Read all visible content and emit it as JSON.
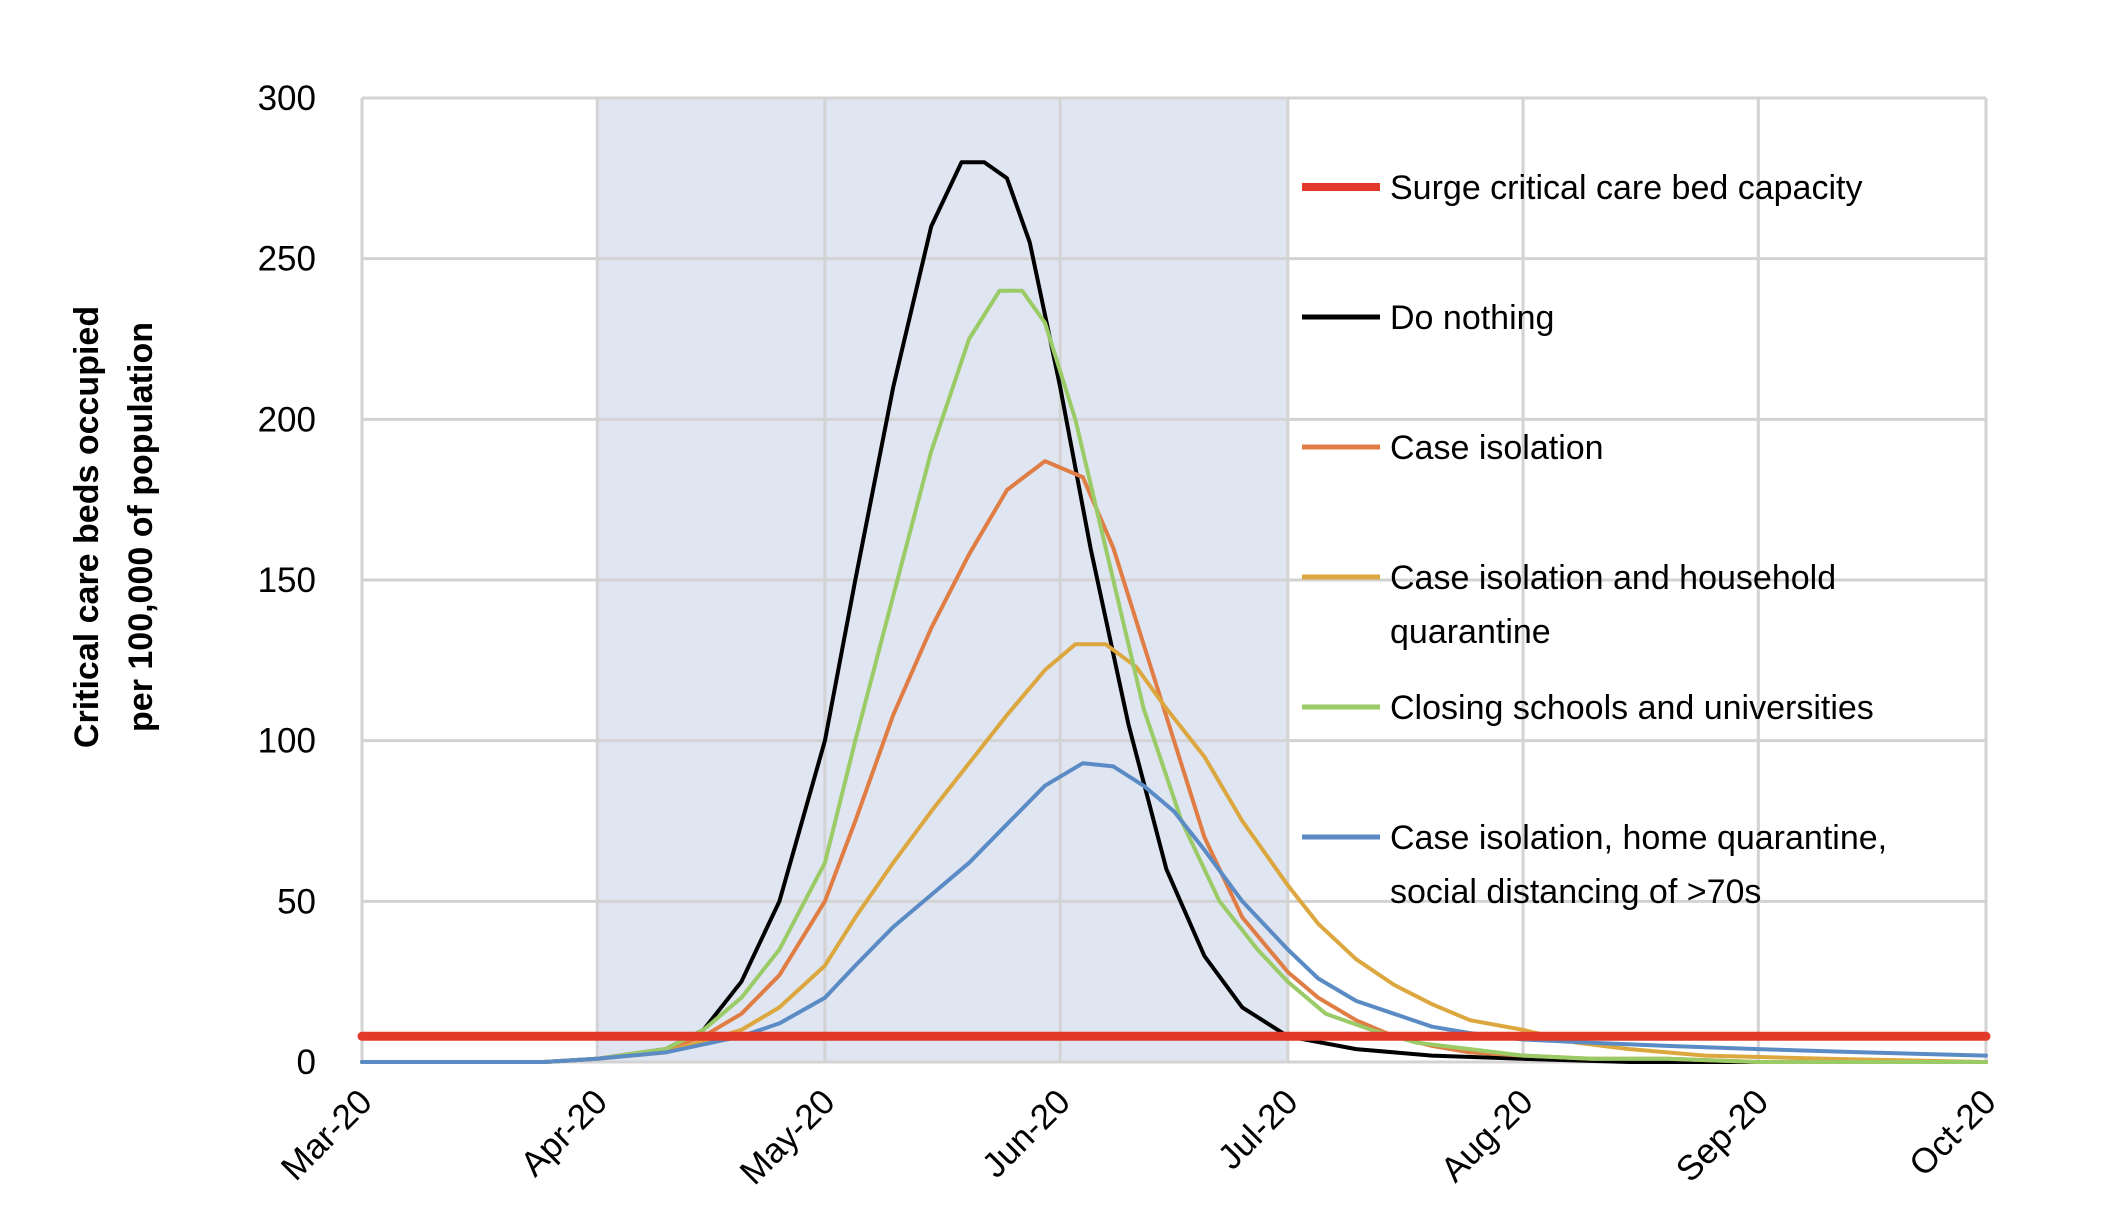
{
  "chart_data": {
    "type": "line",
    "title": "",
    "ylabel": [
      "Critical care beds occupied",
      "per 100,000 of population"
    ],
    "xlabel": "",
    "x_ticks": [
      "Mar-20",
      "Apr-20",
      "May-20",
      "Jun-20",
      "Jul-20",
      "Aug-20",
      "Sep-20",
      "Oct-20"
    ],
    "y_ticks": [
      "0",
      "50",
      "100",
      "150",
      "200",
      "250",
      "300"
    ],
    "ylim": [
      0,
      300
    ],
    "xlim": [
      "2020-03-01",
      "2020-10-01"
    ],
    "grid": true,
    "legend_position": "right",
    "shaded_period": [
      "2020-04-01",
      "2020-07-01"
    ],
    "shade_color": "#dfe5f1",
    "series": [
      {
        "name": "Surge critical care bed capacity",
        "color": "#e23a2a",
        "style": "thick",
        "x": [
          "2020-03-01",
          "2020-10-01"
        ],
        "y": [
          8,
          8
        ]
      },
      {
        "name": "Do nothing",
        "color": "#000000",
        "x": [
          "2020-03-01",
          "2020-03-25",
          "2020-04-01",
          "2020-04-10",
          "2020-04-15",
          "2020-04-20",
          "2020-04-25",
          "2020-05-01",
          "2020-05-05",
          "2020-05-10",
          "2020-05-15",
          "2020-05-19",
          "2020-05-22",
          "2020-05-25",
          "2020-05-28",
          "2020-06-01",
          "2020-06-05",
          "2020-06-10",
          "2020-06-15",
          "2020-06-20",
          "2020-06-25",
          "2020-07-01",
          "2020-07-10",
          "2020-07-20",
          "2020-08-01",
          "2020-08-15",
          "2020-10-01"
        ],
        "y": [
          0,
          0,
          1,
          4,
          10,
          25,
          50,
          100,
          150,
          210,
          260,
          280,
          280,
          275,
          255,
          210,
          160,
          105,
          60,
          33,
          17,
          8,
          4,
          2,
          1,
          0,
          0
        ]
      },
      {
        "name": "Case isolation",
        "color": "#e07d45",
        "x": [
          "2020-03-01",
          "2020-03-25",
          "2020-04-01",
          "2020-04-10",
          "2020-04-15",
          "2020-04-20",
          "2020-04-25",
          "2020-05-01",
          "2020-05-05",
          "2020-05-10",
          "2020-05-15",
          "2020-05-20",
          "2020-05-25",
          "2020-05-30",
          "2020-06-04",
          "2020-06-08",
          "2020-06-12",
          "2020-06-16",
          "2020-06-20",
          "2020-06-25",
          "2020-07-01",
          "2020-07-05",
          "2020-07-10",
          "2020-07-15",
          "2020-07-20",
          "2020-07-25",
          "2020-08-01",
          "2020-08-10",
          "2020-08-20",
          "2020-09-01",
          "2020-10-01"
        ],
        "y": [
          0,
          0,
          1,
          4,
          8,
          15,
          27,
          50,
          75,
          108,
          135,
          158,
          178,
          187,
          182,
          160,
          130,
          100,
          70,
          45,
          28,
          20,
          13,
          8,
          5,
          3,
          2,
          1,
          1,
          0,
          0
        ]
      },
      {
        "name": "Case isolation and household quarantine",
        "color": "#dca73e",
        "x": [
          "2020-03-01",
          "2020-03-25",
          "2020-04-01",
          "2020-04-10",
          "2020-04-20",
          "2020-04-25",
          "2020-05-01",
          "2020-05-05",
          "2020-05-10",
          "2020-05-15",
          "2020-05-20",
          "2020-05-25",
          "2020-05-30",
          "2020-06-03",
          "2020-06-07",
          "2020-06-11",
          "2020-06-15",
          "2020-06-20",
          "2020-06-25",
          "2020-07-01",
          "2020-07-05",
          "2020-07-10",
          "2020-07-15",
          "2020-07-20",
          "2020-07-25",
          "2020-08-01",
          "2020-08-08",
          "2020-08-15",
          "2020-08-25",
          "2020-09-10",
          "2020-10-01"
        ],
        "y": [
          0,
          0,
          1,
          3,
          10,
          17,
          30,
          45,
          62,
          78,
          93,
          108,
          122,
          130,
          130,
          123,
          110,
          95,
          75,
          55,
          43,
          32,
          24,
          18,
          13,
          10,
          6,
          4,
          2,
          1,
          0
        ]
      },
      {
        "name": "Closing schools and universities",
        "color": "#9acb67",
        "x": [
          "2020-03-01",
          "2020-03-25",
          "2020-04-01",
          "2020-04-10",
          "2020-04-15",
          "2020-04-20",
          "2020-04-25",
          "2020-05-01",
          "2020-05-05",
          "2020-05-10",
          "2020-05-15",
          "2020-05-20",
          "2020-05-24",
          "2020-05-27",
          "2020-05-30",
          "2020-06-03",
          "2020-06-07",
          "2020-06-12",
          "2020-06-17",
          "2020-06-22",
          "2020-06-27",
          "2020-07-01",
          "2020-07-06",
          "2020-07-12",
          "2020-07-18",
          "2020-07-25",
          "2020-08-01",
          "2020-08-10",
          "2020-08-20",
          "2020-09-01",
          "2020-10-01"
        ],
        "y": [
          0,
          0,
          1,
          4,
          10,
          20,
          35,
          62,
          100,
          145,
          190,
          225,
          240,
          240,
          230,
          200,
          160,
          110,
          75,
          50,
          35,
          25,
          15,
          10,
          6,
          4,
          2,
          1,
          1,
          0,
          0
        ]
      },
      {
        "name": "Case isolation, home quarantine, social distancing of >70s",
        "color": "#5b8bc4",
        "x": [
          "2020-03-01",
          "2020-03-25",
          "2020-04-01",
          "2020-04-10",
          "2020-04-20",
          "2020-04-25",
          "2020-05-01",
          "2020-05-05",
          "2020-05-10",
          "2020-05-15",
          "2020-05-20",
          "2020-05-25",
          "2020-05-30",
          "2020-06-04",
          "2020-06-08",
          "2020-06-12",
          "2020-06-16",
          "2020-06-20",
          "2020-06-25",
          "2020-07-01",
          "2020-07-05",
          "2020-07-10",
          "2020-07-15",
          "2020-07-20",
          "2020-07-25",
          "2020-08-01",
          "2020-08-10",
          "2020-08-20",
          "2020-09-01",
          "2020-09-15",
          "2020-10-01"
        ],
        "y": [
          0,
          0,
          1,
          3,
          8,
          12,
          20,
          30,
          42,
          52,
          62,
          74,
          86,
          93,
          92,
          86,
          78,
          66,
          50,
          35,
          26,
          19,
          15,
          11,
          9,
          7,
          6,
          5,
          4,
          3,
          2
        ]
      }
    ]
  }
}
